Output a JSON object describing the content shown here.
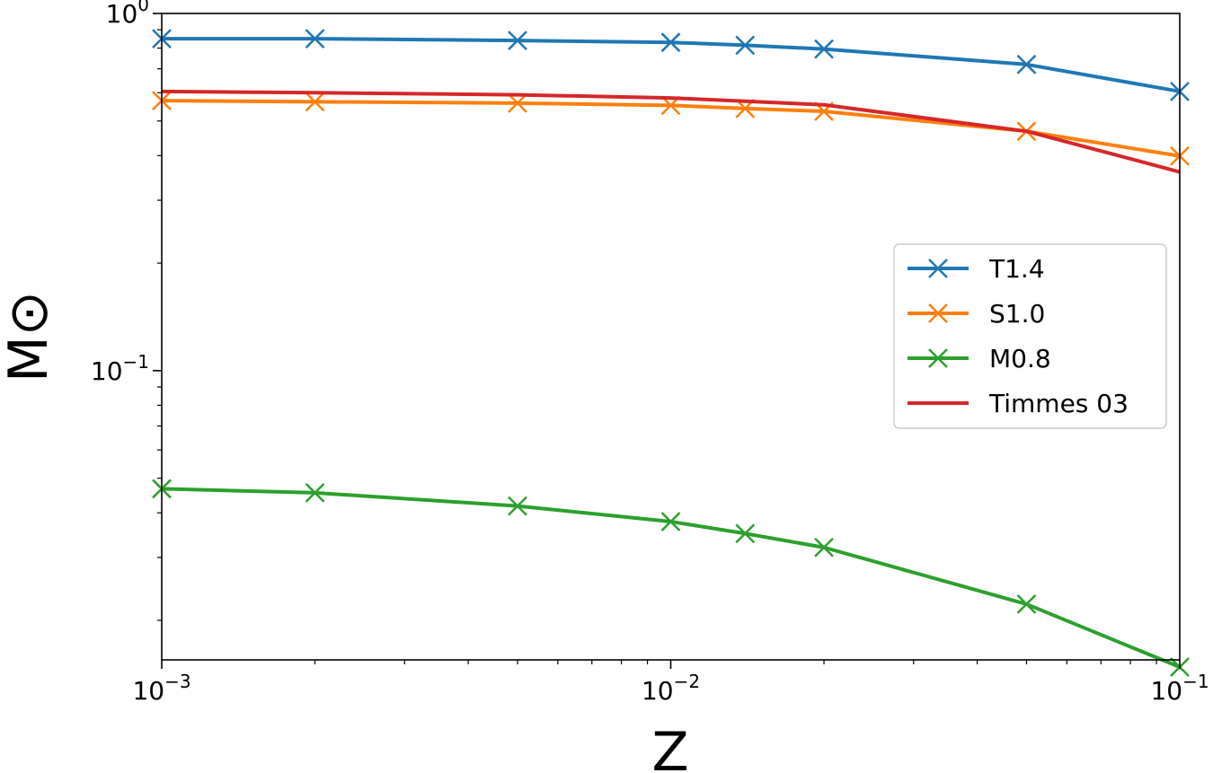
{
  "chart_data": {
    "type": "line",
    "xlabel": "Z",
    "ylabel": "M⊙",
    "xscale": "log",
    "yscale": "log",
    "xlim": [
      0.001,
      0.1
    ],
    "ylim": [
      0.0155,
      1.0
    ],
    "x_ticks": [
      {
        "value": 0.001,
        "base": "10",
        "exp": "−3"
      },
      {
        "value": 0.01,
        "base": "10",
        "exp": "−2"
      },
      {
        "value": 0.1,
        "base": "10",
        "exp": "−1"
      }
    ],
    "y_ticks": [
      {
        "value": 0.1,
        "base": "10",
        "exp": "−1"
      },
      {
        "value": 1.0,
        "base": "10",
        "exp": "0"
      }
    ],
    "grid": false,
    "legend_position": "center-right",
    "series": [
      {
        "name": "T1.4",
        "color": "#1f77b4",
        "marker": "x",
        "x": [
          0.001,
          0.002,
          0.005,
          0.01,
          0.014,
          0.02,
          0.05,
          0.1
        ],
        "y": [
          0.85,
          0.85,
          0.84,
          0.83,
          0.815,
          0.795,
          0.72,
          0.605
        ]
      },
      {
        "name": "S1.0",
        "color": "#ff7f0e",
        "marker": "x",
        "x": [
          0.001,
          0.002,
          0.005,
          0.01,
          0.014,
          0.02,
          0.05,
          0.1
        ],
        "y": [
          0.57,
          0.566,
          0.561,
          0.553,
          0.542,
          0.532,
          0.468,
          0.399
        ]
      },
      {
        "name": "M0.8",
        "color": "#2ca02c",
        "marker": "x",
        "x": [
          0.001,
          0.002,
          0.005,
          0.01,
          0.014,
          0.02,
          0.05,
          0.1
        ],
        "y": [
          0.0467,
          0.0455,
          0.0418,
          0.0378,
          0.035,
          0.032,
          0.0222,
          0.0148
        ]
      },
      {
        "name": "Timmes 03",
        "color": "#d62728",
        "marker": "none",
        "x": [
          0.001,
          0.002,
          0.005,
          0.01,
          0.014,
          0.02,
          0.05,
          0.1
        ],
        "y": [
          0.605,
          0.6,
          0.592,
          0.58,
          0.568,
          0.555,
          0.468,
          0.36
        ]
      }
    ]
  }
}
